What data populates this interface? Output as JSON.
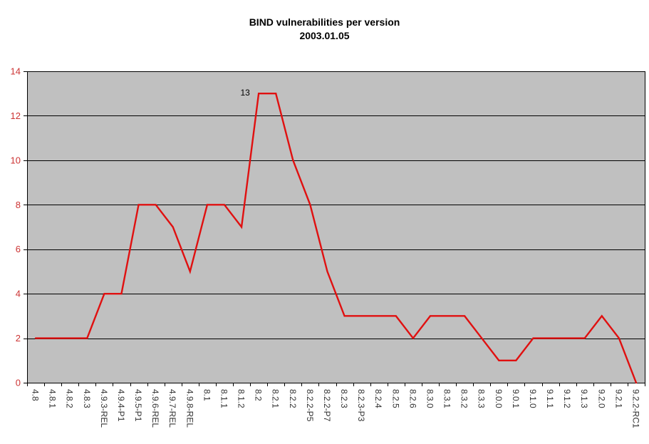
{
  "title": {
    "line1": "BIND vulnerabilities per version",
    "line2": "2003.01.05"
  },
  "chart_data": {
    "type": "line",
    "title": "BIND vulnerabilities per version",
    "subtitle": "2003.01.05",
    "categories": [
      "4.8",
      "4.8.1",
      "4.8.2",
      "4.8.3",
      "4.9.3-REL",
      "4.9.4-P1",
      "4.9.5-P1",
      "4.9.6-REL",
      "4.9.7-REL",
      "4.9.8-REL",
      "8.1",
      "8.1.1",
      "8.1.2",
      "8.2",
      "8.2.1",
      "8.2.2",
      "8.2.2-P5",
      "8.2.2-P7",
      "8.2.3",
      "8.2.3-P3",
      "8.2.4",
      "8.2.5",
      "8.2.6",
      "8.3.0",
      "8.3.1",
      "8.3.2",
      "8.3.3",
      "9.0.0",
      "9.0.1",
      "9.1.0",
      "9.1.1",
      "9.1.2",
      "9.1.3",
      "9.2.0",
      "9.2.1",
      "9.2.2-RC1"
    ],
    "series": [
      {
        "name": "BIND vulnerabilities",
        "color": "#e01010",
        "values": [
          2,
          2,
          2,
          2,
          4,
          4,
          8,
          8,
          7,
          5,
          8,
          8,
          7,
          13,
          13,
          10,
          8,
          5,
          3,
          3,
          3,
          3,
          2,
          3,
          3,
          3,
          2,
          1,
          1,
          2,
          2,
          2,
          2,
          3,
          2,
          0
        ]
      }
    ],
    "xlabel": "",
    "ylabel": "",
    "ylim": [
      0,
      14
    ],
    "ytick_step": 2,
    "ytick_labels": [
      "0",
      "2",
      "4",
      "6",
      "8",
      "10",
      "12",
      "14"
    ],
    "grid": true,
    "legend_position": "none",
    "plot_background": "#c0c0c0",
    "gridline_color": "#000000",
    "axis_color": "#000000",
    "ytick_label_color": "#cc3333",
    "xtick_label_color": "#333333",
    "annotations": [
      {
        "text": "13",
        "category": "8.2",
        "value": 13
      }
    ]
  }
}
